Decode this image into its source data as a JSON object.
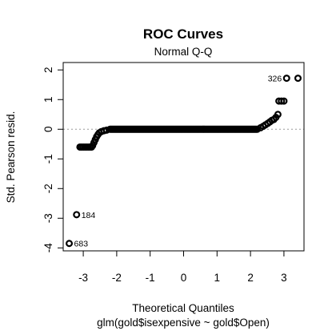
{
  "chart_data": {
    "type": "scatter",
    "title": "ROC Curves",
    "subtitle": "Normal Q-Q",
    "xlabel": "Theoretical Quantiles",
    "xlabel_caption": "glm(gold$isexpensive ~ gold$Open)",
    "ylabel": "Std. Pearson resid.",
    "xlim": [
      -3.6,
      3.6
    ],
    "ylim": [
      -4.1,
      2.25
    ],
    "x_ticks": [
      "-3",
      "-2",
      "-1",
      "0",
      "1",
      "2",
      "3"
    ],
    "y_ticks": [
      "-4",
      "-3",
      "-2",
      "-1",
      "0",
      "1",
      "2"
    ],
    "reference_line_y": 0,
    "reference_line_style": "dotted",
    "grid": false,
    "point_groups": [
      {
        "x_start": -3.1,
        "x_end": -2.75,
        "y": -0.6,
        "n": 8
      },
      {
        "x_start": -2.2,
        "x_end": 2.2,
        "y": 0.0,
        "n": 170
      },
      {
        "x_start": 2.85,
        "x_end": 3.0,
        "y": 0.95,
        "n": 3
      }
    ],
    "points": [
      {
        "x": -3.42,
        "y": -3.85
      },
      {
        "x": -3.2,
        "y": -2.88
      },
      {
        "x": -2.72,
        "y": -0.55
      },
      {
        "x": -2.68,
        "y": -0.45
      },
      {
        "x": -2.64,
        "y": -0.35
      },
      {
        "x": -2.6,
        "y": -0.25
      },
      {
        "x": -2.56,
        "y": -0.18
      },
      {
        "x": -2.52,
        "y": -0.12
      },
      {
        "x": -2.46,
        "y": -0.08
      },
      {
        "x": -2.38,
        "y": -0.05
      },
      {
        "x": -2.3,
        "y": -0.03
      },
      {
        "x": 2.3,
        "y": 0.05
      },
      {
        "x": 2.38,
        "y": 0.1
      },
      {
        "x": 2.45,
        "y": 0.15
      },
      {
        "x": 2.52,
        "y": 0.2
      },
      {
        "x": 2.58,
        "y": 0.25
      },
      {
        "x": 2.64,
        "y": 0.3
      },
      {
        "x": 2.7,
        "y": 0.33
      },
      {
        "x": 2.76,
        "y": 0.4
      },
      {
        "x": 2.82,
        "y": 0.5
      },
      {
        "x": 3.08,
        "y": 1.72
      },
      {
        "x": 3.42,
        "y": 1.72
      }
    ],
    "annotations": [
      {
        "text": "326",
        "x": 3.08,
        "y": 1.72,
        "side": "left"
      },
      {
        "text": "184",
        "x": -3.2,
        "y": -2.88,
        "side": "right"
      },
      {
        "text": "683",
        "x": -3.42,
        "y": -3.85,
        "side": "right"
      }
    ]
  }
}
